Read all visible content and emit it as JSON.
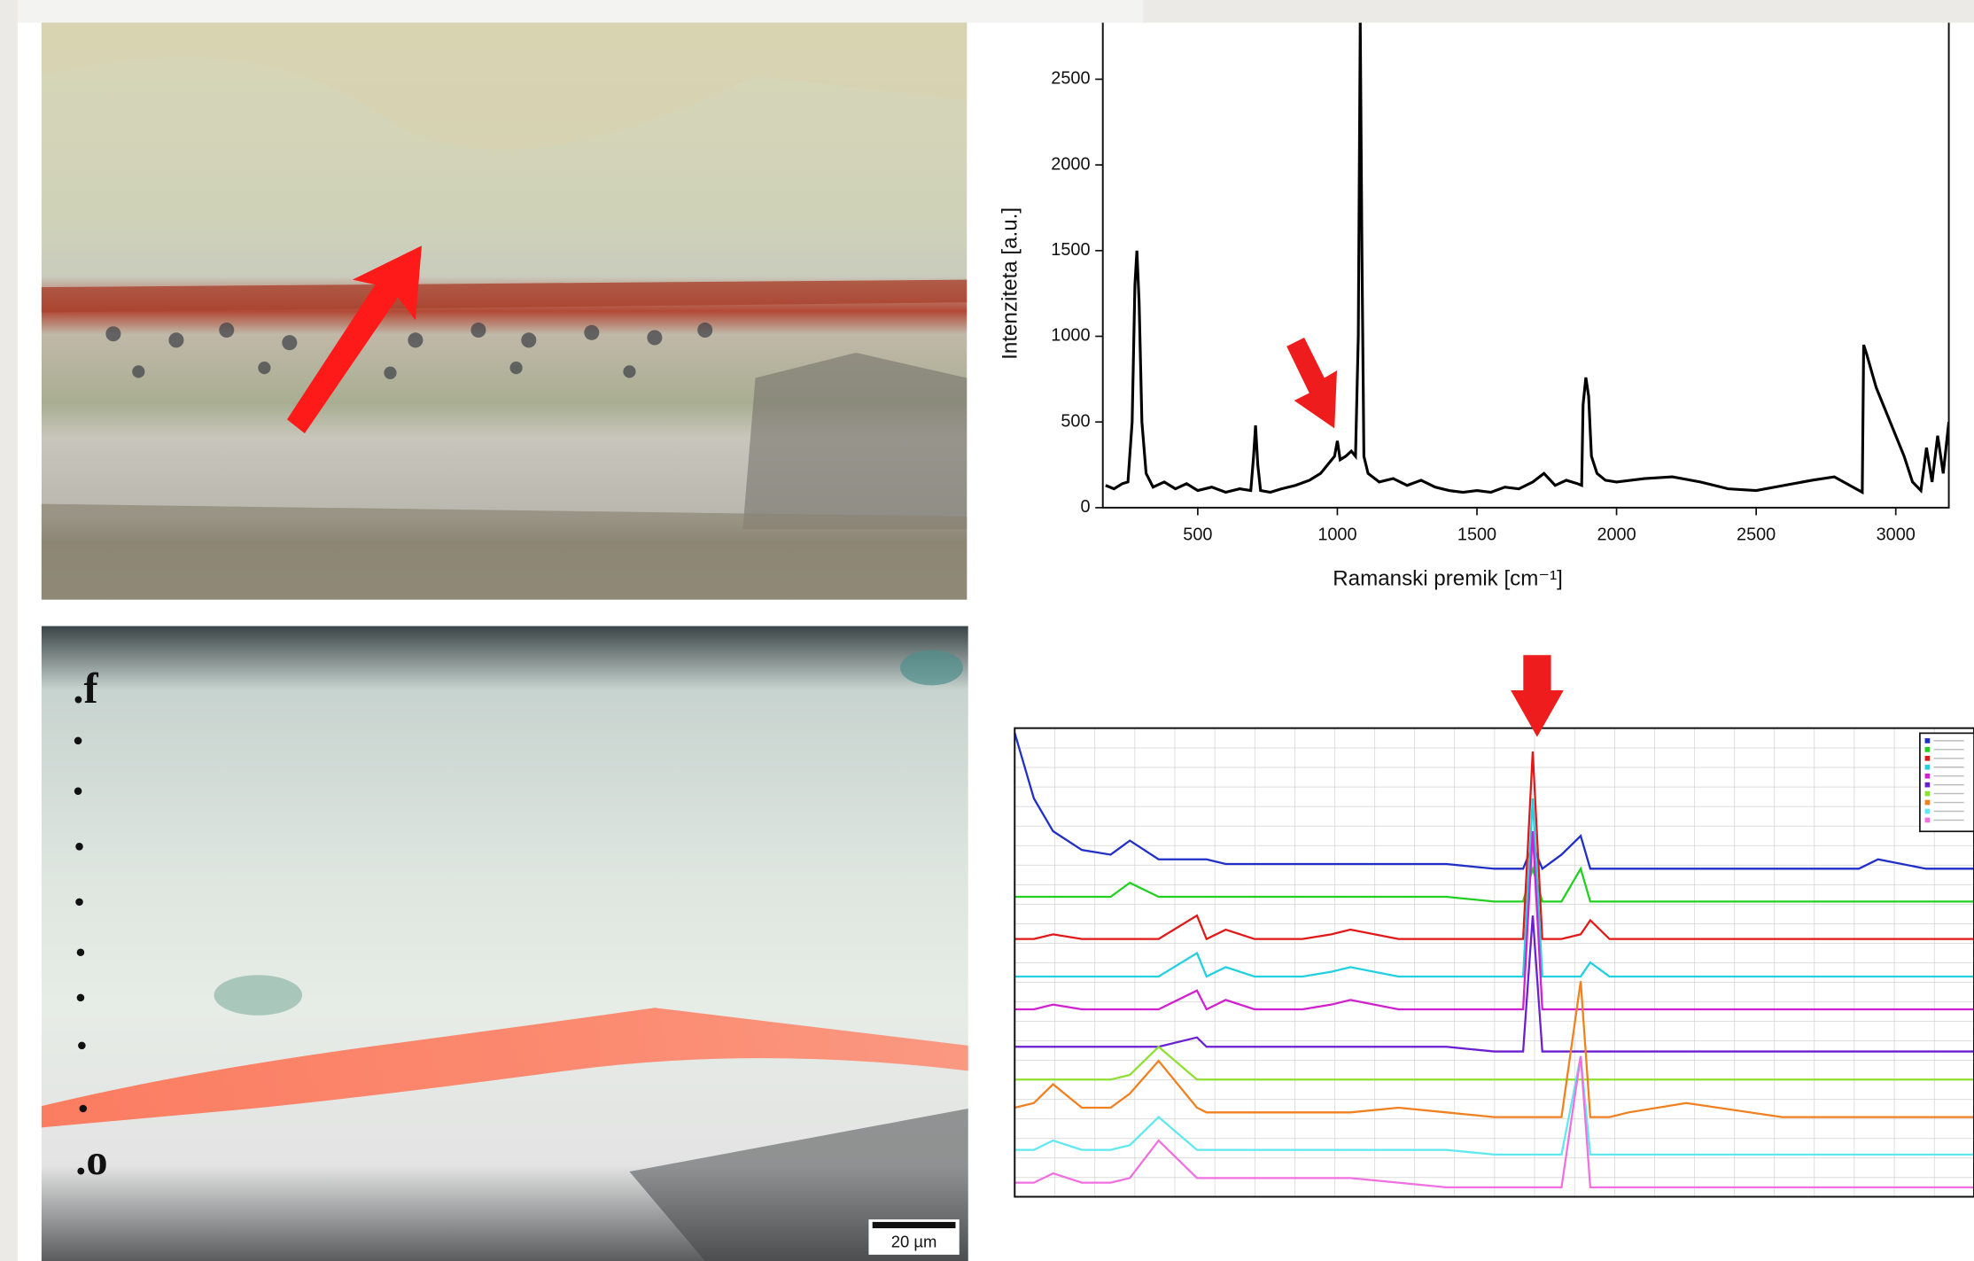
{
  "chart_data": [
    {
      "type": "line",
      "x_label": "Ramanski premik [cm⁻¹]",
      "y_label": "Intenziteta [a.u.]",
      "color": "#000000",
      "xlim": [
        160,
        3190
      ],
      "ylim": [
        0,
        2830
      ],
      "xticks": [
        500,
        1000,
        1500,
        2000,
        2500,
        3000
      ],
      "yticks": [
        0,
        500,
        1000,
        1500,
        2000,
        2500
      ],
      "x": [
        170,
        200,
        230,
        250,
        265,
        275,
        282,
        290,
        300,
        315,
        340,
        380,
        420,
        460,
        500,
        550,
        600,
        650,
        690,
        700,
        707,
        715,
        725,
        760,
        800,
        850,
        900,
        940,
        970,
        990,
        1000,
        1010,
        1030,
        1050,
        1065,
        1075,
        1082,
        1088,
        1095,
        1110,
        1150,
        1200,
        1250,
        1300,
        1350,
        1400,
        1450,
        1500,
        1550,
        1600,
        1650,
        1700,
        1740,
        1780,
        1820,
        1860,
        1875,
        1880,
        1890,
        1900,
        1910,
        1930,
        1960,
        2000,
        2100,
        2200,
        2300,
        2400,
        2500,
        2600,
        2700,
        2780,
        2880,
        2885,
        2895,
        2930,
        2980,
        3030,
        3060,
        3090,
        3110,
        3130,
        3150,
        3170,
        3190
      ],
      "values": [
        130,
        110,
        140,
        150,
        500,
        1300,
        1500,
        1200,
        500,
        200,
        120,
        150,
        110,
        140,
        100,
        120,
        90,
        110,
        100,
        300,
        480,
        250,
        100,
        90,
        110,
        130,
        160,
        200,
        260,
        300,
        390,
        280,
        300,
        330,
        300,
        1000,
        2830,
        1500,
        300,
        200,
        150,
        170,
        130,
        160,
        120,
        100,
        90,
        100,
        90,
        120,
        110,
        150,
        200,
        130,
        160,
        140,
        130,
        600,
        760,
        650,
        300,
        200,
        160,
        150,
        170,
        180,
        150,
        110,
        100,
        130,
        160,
        180,
        90,
        950,
        900,
        700,
        500,
        300,
        150,
        100,
        350,
        150,
        420,
        200,
        500
      ]
    },
    {
      "type": "line",
      "xlim": [
        0,
        100
      ],
      "ylim": [
        0,
        100
      ],
      "x": [
        0,
        2,
        4,
        7,
        10,
        12,
        15,
        19,
        20,
        22,
        25,
        28,
        30,
        33,
        35,
        40,
        45,
        50,
        53,
        54,
        55,
        57,
        59,
        60,
        62,
        64,
        70,
        80,
        88,
        90,
        95,
        100
      ],
      "series": [
        {
          "color": "#1f2fc8",
          "values": [
            99,
            85,
            78,
            74,
            73,
            76,
            72,
            72,
            72,
            71,
            71,
            71,
            71,
            71,
            71,
            71,
            71,
            70,
            70,
            75,
            70,
            73,
            77,
            70,
            70,
            70,
            70,
            70,
            70,
            72,
            70,
            70
          ]
        },
        {
          "color": "#22d022",
          "values": [
            64,
            64,
            64,
            64,
            64,
            67,
            64,
            64,
            64,
            64,
            64,
            64,
            64,
            64,
            64,
            64,
            64,
            63,
            63,
            70,
            63,
            63,
            70,
            63,
            63,
            63,
            63,
            63,
            63,
            63,
            63,
            63
          ]
        },
        {
          "color": "#e01818",
          "values": [
            55,
            55,
            56,
            55,
            55,
            55,
            55,
            60,
            55,
            57,
            55,
            55,
            55,
            56,
            57,
            55,
            55,
            55,
            55,
            95,
            55,
            55,
            56,
            59,
            55,
            55,
            55,
            55,
            55,
            55,
            55,
            55
          ]
        },
        {
          "color": "#22d0e0",
          "values": [
            47,
            47,
            47,
            47,
            47,
            47,
            47,
            52,
            47,
            49,
            47,
            47,
            47,
            48,
            49,
            47,
            47,
            47,
            47,
            85,
            47,
            47,
            47,
            50,
            47,
            47,
            47,
            47,
            47,
            47,
            47,
            47
          ]
        },
        {
          "color": "#d020d0",
          "values": [
            40,
            40,
            41,
            40,
            40,
            40,
            40,
            44,
            40,
            42,
            40,
            40,
            40,
            41,
            42,
            40,
            40,
            40,
            40,
            78,
            40,
            40,
            40,
            40,
            40,
            40,
            40,
            40,
            40,
            40,
            40,
            40
          ]
        },
        {
          "color": "#6a1fd0",
          "values": [
            32,
            32,
            32,
            32,
            32,
            32,
            32,
            34,
            32,
            32,
            32,
            32,
            32,
            32,
            32,
            32,
            32,
            31,
            31,
            60,
            31,
            31,
            31,
            31,
            31,
            31,
            31,
            31,
            31,
            31,
            31,
            31
          ]
        },
        {
          "color": "#8ee030",
          "values": [
            25,
            25,
            25,
            25,
            25,
            26,
            32,
            25,
            25,
            25,
            25,
            25,
            25,
            25,
            25,
            25,
            25,
            25,
            25,
            25,
            25,
            25,
            25,
            25,
            25,
            25,
            25,
            25,
            25,
            25,
            25,
            25
          ]
        },
        {
          "color": "#f08020",
          "values": [
            19,
            20,
            24,
            19,
            19,
            22,
            29,
            19,
            18,
            18,
            18,
            18,
            18,
            18,
            18,
            19,
            18,
            17,
            17,
            17,
            17,
            17,
            46,
            17,
            17,
            18,
            20,
            17,
            17,
            17,
            17,
            17
          ]
        },
        {
          "color": "#60e8f0",
          "values": [
            10,
            10,
            12,
            10,
            10,
            11,
            17,
            10,
            10,
            10,
            10,
            10,
            10,
            10,
            10,
            10,
            10,
            9,
            9,
            9,
            9,
            9,
            30,
            9,
            9,
            9,
            9,
            9,
            9,
            9,
            9,
            9
          ]
        },
        {
          "color": "#f070e0",
          "values": [
            3,
            3,
            5,
            3,
            3,
            4,
            12,
            4,
            4,
            4,
            4,
            4,
            4,
            4,
            4,
            3,
            2,
            2,
            2,
            2,
            2,
            2,
            30,
            2,
            2,
            2,
            2,
            2,
            2,
            2,
            2,
            2
          ]
        }
      ]
    }
  ],
  "panels": {
    "cross_section": {
      "top_label": ".f",
      "bottom_label": ".o",
      "scale_bar": "20 µm"
    }
  }
}
